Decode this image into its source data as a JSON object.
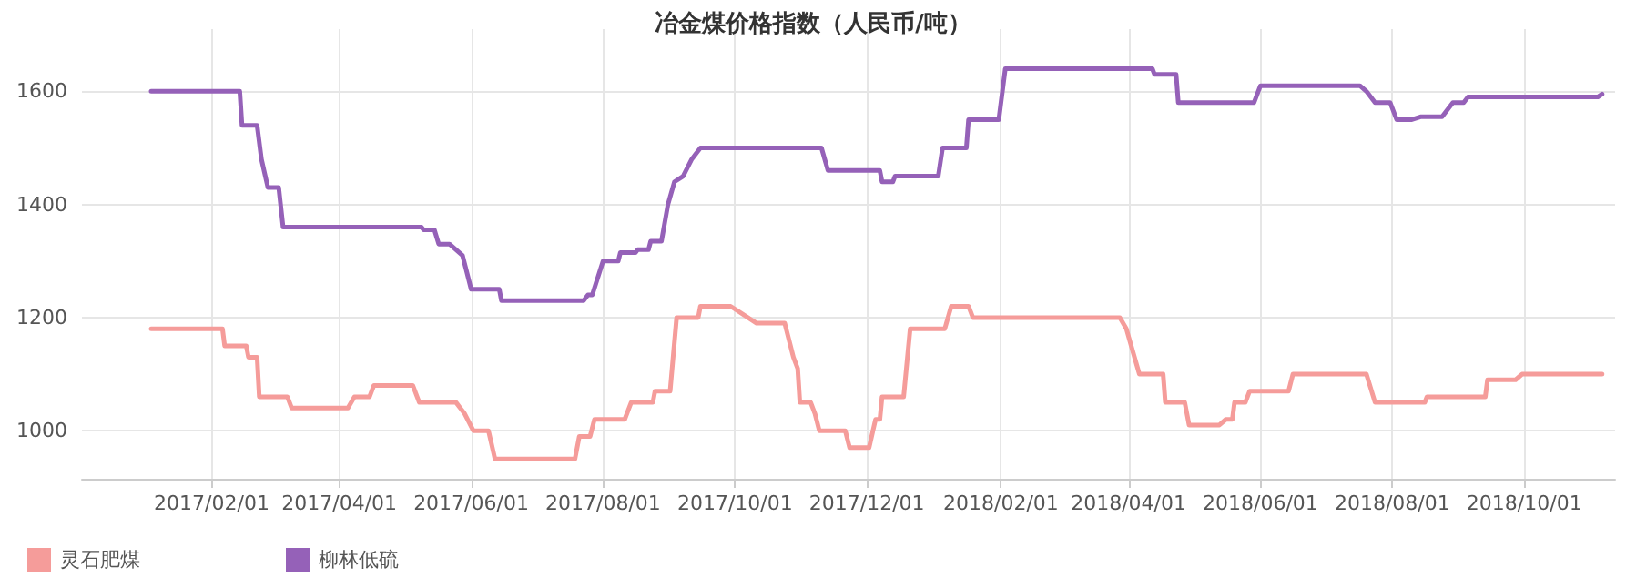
{
  "chart_data": {
    "type": "line",
    "title": "冶金煤价格指数（人民币/吨）",
    "xlim": [
      "2016-12-03",
      "2018-11-12"
    ],
    "xticks": [
      {
        "value": "2017-02-01",
        "label": "2017/02/01"
      },
      {
        "value": "2017-04-01",
        "label": "2017/04/01"
      },
      {
        "value": "2017-06-01",
        "label": "2017/06/01"
      },
      {
        "value": "2017-08-01",
        "label": "2017/08/01"
      },
      {
        "value": "2017-10-01",
        "label": "2017/10/01"
      },
      {
        "value": "2017-12-01",
        "label": "2017/12/01"
      },
      {
        "value": "2018-02-01",
        "label": "2018/02/01"
      },
      {
        "value": "2018-04-01",
        "label": "2018/04/01"
      },
      {
        "value": "2018-06-01",
        "label": "2018/06/01"
      },
      {
        "value": "2018-08-01",
        "label": "2018/08/01"
      },
      {
        "value": "2018-10-01",
        "label": "2018/10/01"
      }
    ],
    "ylim": [
      915,
      1710
    ],
    "yticks": [
      1000,
      1200,
      1400,
      1600
    ],
    "grid": true,
    "legend": "bottom left",
    "marker": "none",
    "line_style": "solid",
    "series": [
      {
        "name": "灵石肥煤",
        "color": "#f59c9a",
        "x": [
          "2017-01-04",
          "2017-02-06",
          "2017-02-07",
          "2017-02-17",
          "2017-02-18",
          "2017-02-22",
          "2017-02-23",
          "2017-03-08",
          "2017-03-10",
          "2017-04-05",
          "2017-04-08",
          "2017-04-15",
          "2017-04-17",
          "2017-05-05",
          "2017-05-08",
          "2017-05-25",
          "2017-05-29",
          "2017-06-02",
          "2017-06-09",
          "2017-06-12",
          "2017-07-19",
          "2017-07-21",
          "2017-07-26",
          "2017-07-28",
          "2017-08-11",
          "2017-08-14",
          "2017-08-24",
          "2017-08-25",
          "2017-09-01",
          "2017-09-04",
          "2017-09-14",
          "2017-09-15",
          "2017-09-29",
          "2017-10-11",
          "2017-10-24",
          "2017-10-28",
          "2017-10-30",
          "2017-10-31",
          "2017-11-05",
          "2017-11-07",
          "2017-11-09",
          "2017-11-21",
          "2017-11-23",
          "2017-12-02",
          "2017-12-05",
          "2017-12-07",
          "2017-12-08",
          "2017-12-18",
          "2017-12-21",
          "2018-01-06",
          "2018-01-09",
          "2018-01-17",
          "2018-01-19",
          "2018-03-28",
          "2018-03-31",
          "2018-04-03",
          "2018-04-06",
          "2018-04-17",
          "2018-04-18",
          "2018-04-27",
          "2018-04-29",
          "2018-05-13",
          "2018-05-16",
          "2018-05-19",
          "2018-05-20",
          "2018-05-25",
          "2018-05-27",
          "2018-06-14",
          "2018-06-16",
          "2018-07-20",
          "2018-07-24",
          "2018-08-16",
          "2018-08-17",
          "2018-09-13",
          "2018-09-14",
          "2018-09-27",
          "2018-09-30",
          "2018-11-06"
        ],
        "values": [
          1180,
          1180,
          1150,
          1150,
          1130,
          1130,
          1060,
          1060,
          1040,
          1040,
          1060,
          1060,
          1080,
          1080,
          1050,
          1050,
          1030,
          1000,
          1000,
          950,
          950,
          990,
          990,
          1020,
          1020,
          1050,
          1050,
          1070,
          1070,
          1200,
          1200,
          1220,
          1220,
          1190,
          1190,
          1130,
          1110,
          1050,
          1050,
          1030,
          1000,
          1000,
          970,
          970,
          1020,
          1020,
          1060,
          1060,
          1180,
          1180,
          1220,
          1220,
          1200,
          1200,
          1180,
          1140,
          1100,
          1100,
          1050,
          1050,
          1010,
          1010,
          1020,
          1020,
          1050,
          1050,
          1070,
          1070,
          1100,
          1100,
          1050,
          1050,
          1060,
          1060,
          1090,
          1090,
          1100,
          1100
        ]
      },
      {
        "name": "柳林低硫",
        "color": "#9561b8",
        "x": [
          "2017-01-04",
          "2017-02-14",
          "2017-02-15",
          "2017-02-22",
          "2017-02-24",
          "2017-02-27",
          "2017-03-04",
          "2017-03-06",
          "2017-05-09",
          "2017-05-10",
          "2017-05-15",
          "2017-05-17",
          "2017-05-22",
          "2017-05-28",
          "2017-06-01",
          "2017-06-14",
          "2017-06-15",
          "2017-07-23",
          "2017-07-25",
          "2017-07-27",
          "2017-08-01",
          "2017-08-08",
          "2017-08-09",
          "2017-08-16",
          "2017-08-17",
          "2017-08-22",
          "2017-08-23",
          "2017-08-28",
          "2017-08-31",
          "2017-09-03",
          "2017-09-07",
          "2017-09-11",
          "2017-09-15",
          "2017-11-10",
          "2017-11-13",
          "2017-12-07",
          "2017-12-08",
          "2017-12-13",
          "2017-12-14",
          "2018-01-03",
          "2018-01-05",
          "2018-01-16",
          "2018-01-17",
          "2018-01-31",
          "2018-02-03",
          "2018-04-12",
          "2018-04-13",
          "2018-04-23",
          "2018-04-24",
          "2018-05-29",
          "2018-06-01",
          "2018-07-17",
          "2018-07-20",
          "2018-07-24",
          "2018-07-31",
          "2018-08-03",
          "2018-08-10",
          "2018-08-14",
          "2018-08-24",
          "2018-08-29",
          "2018-09-03",
          "2018-09-05",
          "2018-11-04",
          "2018-11-06"
        ],
        "values": [
          1600,
          1600,
          1540,
          1540,
          1480,
          1430,
          1430,
          1360,
          1360,
          1355,
          1355,
          1330,
          1330,
          1310,
          1250,
          1250,
          1230,
          1230,
          1240,
          1240,
          1300,
          1300,
          1315,
          1315,
          1320,
          1320,
          1335,
          1335,
          1400,
          1440,
          1450,
          1480,
          1500,
          1500,
          1460,
          1460,
          1440,
          1440,
          1450,
          1450,
          1500,
          1500,
          1550,
          1550,
          1640,
          1640,
          1630,
          1630,
          1580,
          1580,
          1610,
          1610,
          1600,
          1580,
          1580,
          1550,
          1550,
          1555,
          1555,
          1580,
          1580,
          1590,
          1590,
          1595
        ]
      }
    ]
  }
}
